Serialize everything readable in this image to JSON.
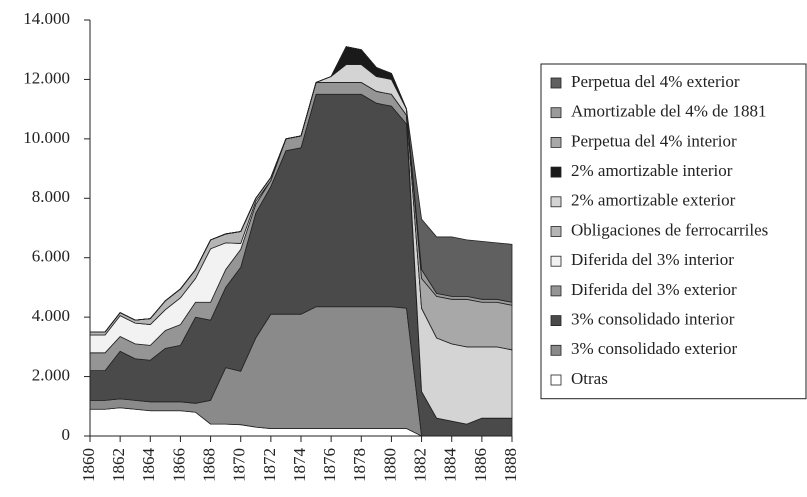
{
  "chart_data": {
    "type": "stacked_area",
    "x": [
      1860,
      1861,
      1862,
      1863,
      1864,
      1865,
      1866,
      1867,
      1868,
      1869,
      1870,
      1871,
      1872,
      1873,
      1874,
      1875,
      1876,
      1877,
      1878,
      1879,
      1880,
      1881,
      1882,
      1883,
      1884,
      1885,
      1886,
      1887,
      1888
    ],
    "xlim": [
      1860,
      1888
    ],
    "xticks": [
      1860,
      1862,
      1864,
      1866,
      1868,
      1870,
      1872,
      1874,
      1876,
      1878,
      1880,
      1882,
      1884,
      1886,
      1888
    ],
    "ylim": [
      0,
      14000
    ],
    "yticks": [
      0,
      {
        "value": 2000,
        "label": "2.000"
      },
      {
        "value": 4000,
        "label": "4.000"
      },
      {
        "value": 6000,
        "label": "6.000"
      },
      {
        "value": 8000,
        "label": "8.000"
      },
      {
        "value": 10000,
        "label": "10.000"
      },
      {
        "value": 12000,
        "label": "12.000"
      },
      {
        "value": 14000,
        "label": "14.000"
      }
    ],
    "series": [
      {
        "name": "Otras",
        "color": "#ffffff",
        "values": [
          900,
          900,
          950,
          900,
          850,
          850,
          850,
          800,
          400,
          400,
          380,
          300,
          250,
          250,
          250,
          250,
          250,
          250,
          250,
          250,
          250,
          250,
          0,
          0,
          0,
          0,
          0,
          0,
          0
        ]
      },
      {
        "name": "3% consolidado exterior",
        "color": "#8a8a8a",
        "values": [
          300,
          300,
          300,
          300,
          300,
          300,
          300,
          300,
          800,
          1900,
          1800,
          3000,
          3850,
          3850,
          3850,
          4100,
          4100,
          4100,
          4100,
          4100,
          4100,
          4050,
          0,
          0,
          0,
          0,
          0,
          0,
          0
        ]
      },
      {
        "name": "3% consolidado interior",
        "color": "#4a4a4a",
        "values": [
          1000,
          1000,
          1600,
          1400,
          1400,
          1800,
          1900,
          2900,
          2700,
          2700,
          3500,
          4200,
          4300,
          5500,
          5600,
          7150,
          7150,
          7150,
          7150,
          6850,
          6750,
          6200,
          1500,
          600,
          500,
          400,
          600,
          600,
          600
        ]
      },
      {
        "name": "Diferida del 3% exterior",
        "color": "#959595",
        "values": [
          600,
          600,
          500,
          500,
          500,
          600,
          700,
          500,
          600,
          600,
          600,
          300,
          200,
          400,
          400,
          400,
          400,
          400,
          400,
          400,
          400,
          300,
          0,
          0,
          0,
          0,
          0,
          0,
          0
        ]
      },
      {
        "name": "Diferida del 3% interior",
        "color": "#f2f2f2",
        "values": [
          600,
          600,
          700,
          700,
          700,
          700,
          900,
          800,
          1800,
          900,
          200,
          100,
          0,
          0,
          0,
          0,
          0,
          0,
          0,
          0,
          0,
          0,
          0,
          0,
          0,
          0,
          0,
          0,
          0
        ]
      },
      {
        "name": "Obligaciones de ferrocarriles",
        "color": "#b5b5b5",
        "values": [
          100,
          100,
          100,
          100,
          200,
          300,
          300,
          300,
          300,
          300,
          400,
          100,
          100,
          0,
          0,
          0,
          0,
          0,
          0,
          0,
          0,
          0,
          0,
          0,
          0,
          0,
          0,
          0,
          0
        ]
      },
      {
        "name": "2% amortizable exterior",
        "color": "#d4d4d4",
        "values": [
          0,
          0,
          0,
          0,
          0,
          0,
          0,
          0,
          0,
          0,
          0,
          0,
          0,
          0,
          0,
          0,
          200,
          600,
          600,
          500,
          500,
          200,
          2800,
          2700,
          2600,
          2600,
          2400,
          2400,
          2300
        ]
      },
      {
        "name": "2% amortizable interior",
        "color": "#1a1a1a",
        "values": [
          0,
          0,
          0,
          0,
          0,
          0,
          0,
          0,
          0,
          0,
          0,
          0,
          0,
          0,
          0,
          0,
          0,
          600,
          500,
          300,
          200,
          0,
          0,
          0,
          0,
          0,
          0,
          0,
          0
        ]
      },
      {
        "name": "Perpetua del 4% interior",
        "color": "#a8a8a8",
        "values": [
          0,
          0,
          0,
          0,
          0,
          0,
          0,
          0,
          0,
          0,
          0,
          0,
          0,
          0,
          0,
          0,
          0,
          0,
          0,
          0,
          0,
          0,
          1000,
          1400,
          1500,
          1600,
          1500,
          1500,
          1500
        ]
      },
      {
        "name": "Amortizable del 4% de 1881",
        "color": "#9a9a9a",
        "values": [
          0,
          0,
          0,
          0,
          0,
          0,
          0,
          0,
          0,
          0,
          0,
          0,
          0,
          0,
          0,
          0,
          0,
          0,
          0,
          0,
          0,
          0,
          300,
          100,
          100,
          100,
          100,
          100,
          100
        ]
      },
      {
        "name": "Perpetua del 4% exterior",
        "color": "#606060",
        "values": [
          0,
          0,
          0,
          0,
          0,
          0,
          0,
          0,
          0,
          0,
          0,
          0,
          0,
          0,
          0,
          0,
          0,
          0,
          0,
          0,
          0,
          0,
          1700,
          1900,
          2000,
          1900,
          1950,
          1900,
          1950
        ]
      }
    ]
  }
}
